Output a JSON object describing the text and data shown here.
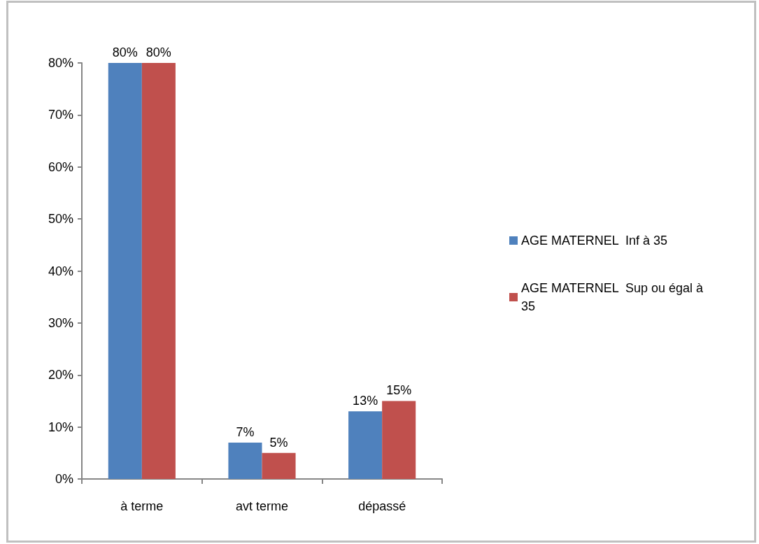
{
  "chart_data": {
    "type": "bar",
    "categories": [
      "à terme",
      "avt terme",
      "dépassé"
    ],
    "series": [
      {
        "name": "AGE MATERNEL  Inf à 35",
        "color": "#4f81bd",
        "values": [
          80,
          7,
          13
        ],
        "value_labels": [
          "80%",
          "7%",
          "13%"
        ]
      },
      {
        "name": "AGE MATERNEL  Sup ou égal à 35",
        "color": "#c0504d",
        "values": [
          80,
          5,
          15
        ],
        "value_labels": [
          "80%",
          "5%",
          "15%"
        ]
      }
    ],
    "ylim": [
      0,
      80
    ],
    "yticks": [
      {
        "value": 0,
        "label": "0%"
      },
      {
        "value": 10,
        "label": "10%"
      },
      {
        "value": 20,
        "label": "20%"
      },
      {
        "value": 30,
        "label": "30%"
      },
      {
        "value": 40,
        "label": "40%"
      },
      {
        "value": 50,
        "label": "50%"
      },
      {
        "value": 60,
        "label": "60%"
      },
      {
        "value": 70,
        "label": "70%"
      },
      {
        "value": 80,
        "label": "80%"
      }
    ],
    "grid": false,
    "legend": "right"
  }
}
